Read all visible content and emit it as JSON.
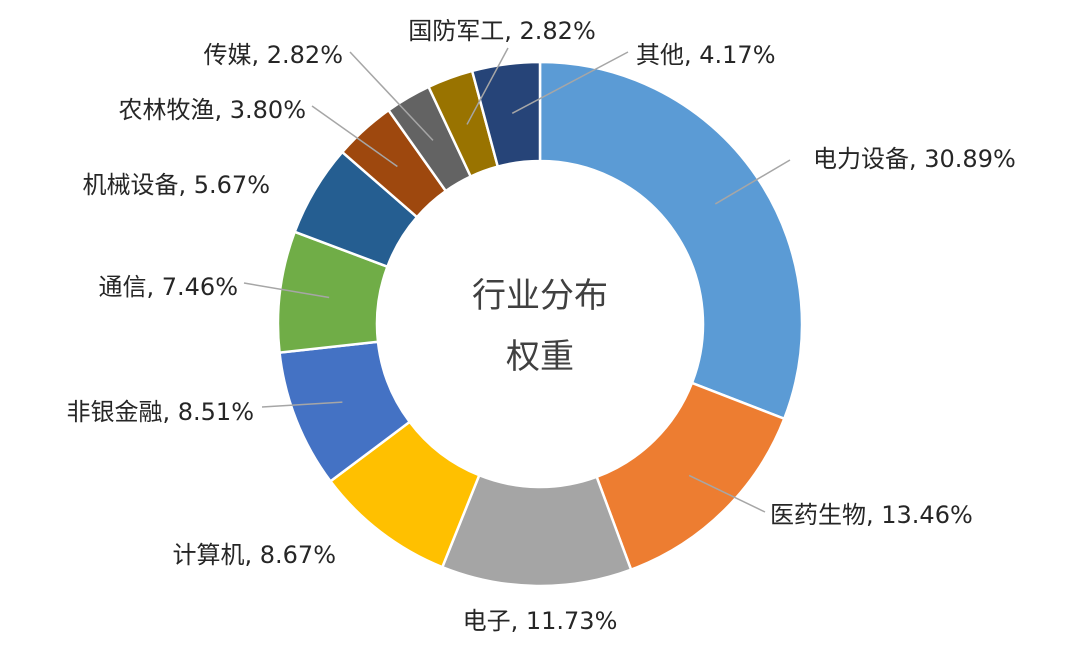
{
  "chart_data": {
    "type": "pie",
    "variant": "donut",
    "center_title_line1": "行业分布",
    "center_title_line2": "权重",
    "slices": [
      {
        "name": "电力设备",
        "value": 30.89,
        "label": "电力设备, 30.89%",
        "color": "#5B9BD5"
      },
      {
        "name": "医药生物",
        "value": 13.46,
        "label": "医药生物, 13.46%",
        "color": "#ED7D31"
      },
      {
        "name": "电子",
        "value": 11.73,
        "label": "电子, 11.73%",
        "color": "#A5A5A5"
      },
      {
        "name": "计算机",
        "value": 8.67,
        "label": "计算机, 8.67%",
        "color": "#FFC000"
      },
      {
        "name": "非银金融",
        "value": 8.51,
        "label": "非银金融, 8.51%",
        "color": "#4472C4"
      },
      {
        "name": "通信",
        "value": 7.46,
        "label": "通信, 7.46%",
        "color": "#70AD47"
      },
      {
        "name": "机械设备",
        "value": 5.67,
        "label": "机械设备, 5.67%",
        "color": "#255E91"
      },
      {
        "name": "农林牧渔",
        "value": 3.8,
        "label": "农林牧渔, 3.80%",
        "color": "#9E480E"
      },
      {
        "name": "传媒",
        "value": 2.82,
        "label": "传媒, 2.82%",
        "color": "#636363"
      },
      {
        "name": "国防军工",
        "value": 2.82,
        "label": "国防军工, 2.82%",
        "color": "#997300"
      },
      {
        "name": "其他",
        "value": 4.17,
        "label": "其他, 4.17%",
        "color": "#264478"
      }
    ]
  }
}
